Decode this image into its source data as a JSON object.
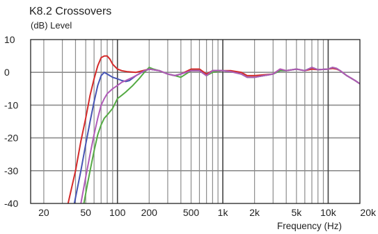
{
  "chart_data": {
    "type": "line",
    "title": "K8.2 Crossovers",
    "ylabel": "(dB)  Level",
    "xlabel": "Frequency  (Hz)",
    "x_scale": "log",
    "xlim": [
      15,
      20000
    ],
    "ylim": [
      -40,
      10
    ],
    "x_ticks": [
      {
        "value": 20,
        "label": "20"
      },
      {
        "value": 50,
        "label": "50"
      },
      {
        "value": 100,
        "label": "100"
      },
      {
        "value": 200,
        "label": "200"
      },
      {
        "value": 500,
        "label": "500"
      },
      {
        "value": 1000,
        "label": "1k"
      },
      {
        "value": 2000,
        "label": "2k"
      },
      {
        "value": 5000,
        "label": "5k"
      },
      {
        "value": 10000,
        "label": "10k"
      },
      {
        "value": 20000,
        "label": "20k"
      }
    ],
    "y_ticks": [
      {
        "value": 10,
        "label": "10"
      },
      {
        "value": 0,
        "label": "0"
      },
      {
        "value": -10,
        "label": "-10"
      },
      {
        "value": -20,
        "label": "-20"
      },
      {
        "value": -30,
        "label": "-30"
      },
      {
        "value": -40,
        "label": "-40"
      }
    ],
    "grid": true,
    "legend": "none",
    "series": [
      {
        "color": "#d42a2a",
        "points": [
          [
            34,
            -40
          ],
          [
            40,
            -30
          ],
          [
            45,
            -21
          ],
          [
            50,
            -14
          ],
          [
            55,
            -7
          ],
          [
            60,
            -2
          ],
          [
            65,
            2
          ],
          [
            70,
            4.5
          ],
          [
            75,
            5
          ],
          [
            80,
            5
          ],
          [
            85,
            4
          ],
          [
            90,
            2.5
          ],
          [
            100,
            1
          ],
          [
            110,
            0.5
          ],
          [
            125,
            0.2
          ],
          [
            150,
            0
          ],
          [
            200,
            1
          ],
          [
            250,
            0.5
          ],
          [
            300,
            -0.5
          ],
          [
            350,
            -1
          ],
          [
            400,
            -0.5
          ],
          [
            500,
            1
          ],
          [
            600,
            1
          ],
          [
            700,
            -0.5
          ],
          [
            800,
            0.5
          ],
          [
            1000,
            0.5
          ],
          [
            1200,
            0.5
          ],
          [
            1500,
            0
          ],
          [
            1700,
            -1
          ],
          [
            2000,
            -1
          ],
          [
            3000,
            -0.5
          ],
          [
            3500,
            1
          ],
          [
            4000,
            0.5
          ],
          [
            5000,
            1
          ],
          [
            6000,
            0.5
          ],
          [
            7000,
            1
          ],
          [
            8000,
            0.8
          ],
          [
            10000,
            1
          ],
          [
            11000,
            1.2
          ],
          [
            12000,
            1
          ],
          [
            13000,
            0.5
          ],
          [
            15000,
            -1
          ],
          [
            18000,
            -2.5
          ],
          [
            20000,
            -3.5
          ]
        ]
      },
      {
        "color": "#4654b4",
        "points": [
          [
            39,
            -40
          ],
          [
            45,
            -30
          ],
          [
            50,
            -22
          ],
          [
            55,
            -15
          ],
          [
            60,
            -9
          ],
          [
            65,
            -4
          ],
          [
            70,
            -1
          ],
          [
            75,
            0
          ],
          [
            80,
            -0.5
          ],
          [
            90,
            -1.5
          ],
          [
            100,
            -2
          ],
          [
            110,
            -2.5
          ],
          [
            120,
            -2.8
          ],
          [
            130,
            -2.5
          ],
          [
            150,
            -1
          ],
          [
            170,
            0
          ],
          [
            200,
            1
          ],
          [
            250,
            0.5
          ],
          [
            300,
            -0.5
          ],
          [
            350,
            -1
          ],
          [
            400,
            -0.5
          ],
          [
            500,
            0.5
          ],
          [
            600,
            0.5
          ],
          [
            700,
            -1
          ],
          [
            800,
            0.5
          ],
          [
            1000,
            0.5
          ],
          [
            1200,
            0.2
          ],
          [
            1500,
            -0.5
          ],
          [
            1700,
            -1.5
          ],
          [
            2000,
            -1.5
          ],
          [
            3000,
            -0.5
          ],
          [
            3500,
            0.5
          ],
          [
            4000,
            0.5
          ],
          [
            5000,
            1
          ],
          [
            6000,
            0.5
          ],
          [
            7000,
            1.5
          ],
          [
            8000,
            0.8
          ],
          [
            10000,
            1
          ],
          [
            11000,
            1.5
          ],
          [
            12000,
            1.2
          ],
          [
            13000,
            0.5
          ],
          [
            15000,
            -1
          ],
          [
            18000,
            -2.5
          ],
          [
            20000,
            -3.5
          ]
        ]
      },
      {
        "color": "#55aa44",
        "points": [
          [
            48,
            -40
          ],
          [
            52,
            -34
          ],
          [
            55,
            -30
          ],
          [
            60,
            -24
          ],
          [
            65,
            -19
          ],
          [
            70,
            -16
          ],
          [
            75,
            -14
          ],
          [
            80,
            -13
          ],
          [
            90,
            -11
          ],
          [
            100,
            -8
          ],
          [
            110,
            -7
          ],
          [
            120,
            -6
          ],
          [
            140,
            -4
          ],
          [
            160,
            -2
          ],
          [
            180,
            0
          ],
          [
            200,
            1.5
          ],
          [
            220,
            1
          ],
          [
            250,
            0.5
          ],
          [
            300,
            -0.5
          ],
          [
            350,
            -1
          ],
          [
            400,
            -1.5
          ],
          [
            500,
            0.5
          ],
          [
            600,
            0.5
          ],
          [
            700,
            -1
          ],
          [
            800,
            0
          ],
          [
            1000,
            0.5
          ],
          [
            1200,
            0.2
          ],
          [
            1500,
            -0.5
          ],
          [
            1700,
            -1.5
          ],
          [
            2000,
            -1.5
          ],
          [
            3000,
            -0.5
          ],
          [
            3500,
            0.5
          ],
          [
            4000,
            0.5
          ],
          [
            5000,
            1
          ],
          [
            6000,
            0.5
          ],
          [
            7000,
            1.5
          ],
          [
            8000,
            0.8
          ],
          [
            10000,
            1
          ],
          [
            11000,
            1.5
          ],
          [
            12000,
            1.2
          ],
          [
            13000,
            0.5
          ],
          [
            15000,
            -1
          ],
          [
            18000,
            -2.5
          ],
          [
            20000,
            -3.5
          ]
        ]
      },
      {
        "color": "#b05ab8",
        "points": [
          [
            45,
            -40
          ],
          [
            50,
            -32
          ],
          [
            55,
            -25
          ],
          [
            60,
            -19
          ],
          [
            65,
            -14
          ],
          [
            70,
            -10
          ],
          [
            75,
            -8
          ],
          [
            80,
            -6.5
          ],
          [
            90,
            -5
          ],
          [
            100,
            -4
          ],
          [
            110,
            -3
          ],
          [
            120,
            -2.5
          ],
          [
            140,
            -1.5
          ],
          [
            160,
            -0.5
          ],
          [
            180,
            0.5
          ],
          [
            200,
            1
          ],
          [
            250,
            0.5
          ],
          [
            300,
            -0.5
          ],
          [
            350,
            -1
          ],
          [
            400,
            -0.5
          ],
          [
            500,
            0.5
          ],
          [
            600,
            0.5
          ],
          [
            700,
            -1
          ],
          [
            800,
            0.5
          ],
          [
            1000,
            0.5
          ],
          [
            1200,
            0.2
          ],
          [
            1500,
            -0.5
          ],
          [
            1700,
            -1.5
          ],
          [
            2000,
            -1.5
          ],
          [
            3000,
            -0.5
          ],
          [
            3500,
            1
          ],
          [
            4000,
            0.5
          ],
          [
            5000,
            1
          ],
          [
            6000,
            0.5
          ],
          [
            7000,
            1.5
          ],
          [
            8000,
            0.8
          ],
          [
            10000,
            1
          ],
          [
            11000,
            1.5
          ],
          [
            12000,
            1.2
          ],
          [
            13000,
            0.5
          ],
          [
            15000,
            -1
          ],
          [
            18000,
            -2.5
          ],
          [
            20000,
            -3.5
          ]
        ]
      }
    ]
  }
}
